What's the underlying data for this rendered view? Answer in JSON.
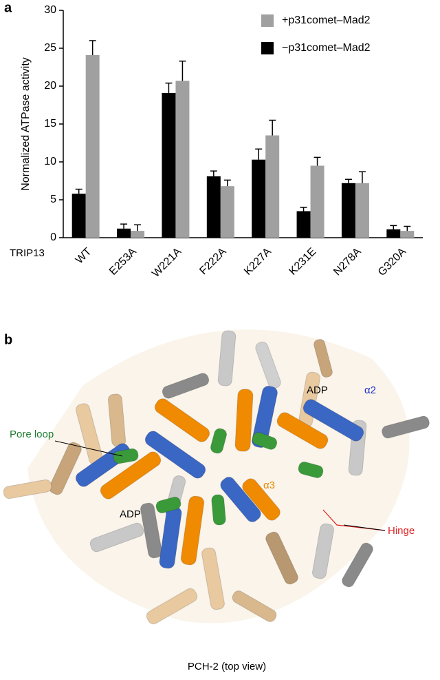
{
  "chart_data": {
    "type": "bar",
    "panel_label": "a",
    "ylabel": "Normalized ATPase activity",
    "xlabel": "TRIP13",
    "categories": [
      "WT",
      "E253A",
      "W221A",
      "F222A",
      "K227A",
      "K231E",
      "N278A",
      "G320A"
    ],
    "series": [
      {
        "name": "−p31comet–Mad2",
        "color": "#000000",
        "values": [
          5.8,
          1.2,
          19.1,
          8.1,
          10.3,
          3.5,
          7.2,
          1.1
        ],
        "errors": [
          0.6,
          0.6,
          1.3,
          0.7,
          1.4,
          0.5,
          0.5,
          0.5
        ]
      },
      {
        "name": "+p31comet–Mad2",
        "color": "#a0a0a0",
        "values": [
          24.1,
          0.9,
          20.7,
          6.8,
          13.5,
          9.5,
          7.2,
          0.9
        ],
        "errors": [
          1.9,
          0.8,
          2.6,
          0.8,
          2.0,
          1.1,
          1.5,
          0.6
        ]
      }
    ],
    "ylim": [
      0,
      30
    ],
    "yticks": [
      0,
      5,
      10,
      15,
      20,
      25,
      30
    ],
    "grid": false,
    "legend": "top-right"
  },
  "structure": {
    "panel_label": "b",
    "caption": "PCH-2 (top view)",
    "labels": {
      "pore_loop": "Pore loop",
      "adp_right": "ADP",
      "alpha2": "α2",
      "alpha3": "α3",
      "hinge": "Hinge",
      "adp_left": "ADP"
    }
  }
}
